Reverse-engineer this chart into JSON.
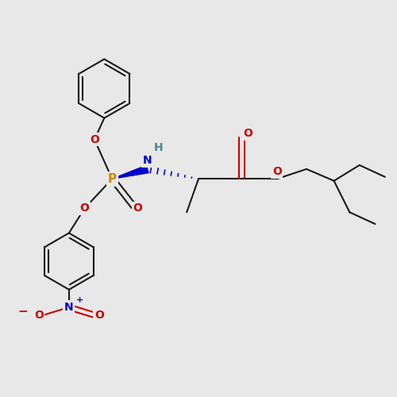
{
  "background_color": "#e8e8e8",
  "bond_color": "#1a1a1a",
  "P_color": "#cc8800",
  "O_color": "#cc0000",
  "N_color": "#0000cc",
  "H_color": "#4a8888",
  "figsize": [
    5.0,
    5.0
  ],
  "dpi": 100,
  "xlim": [
    0,
    10
  ],
  "ylim": [
    0,
    10
  ]
}
